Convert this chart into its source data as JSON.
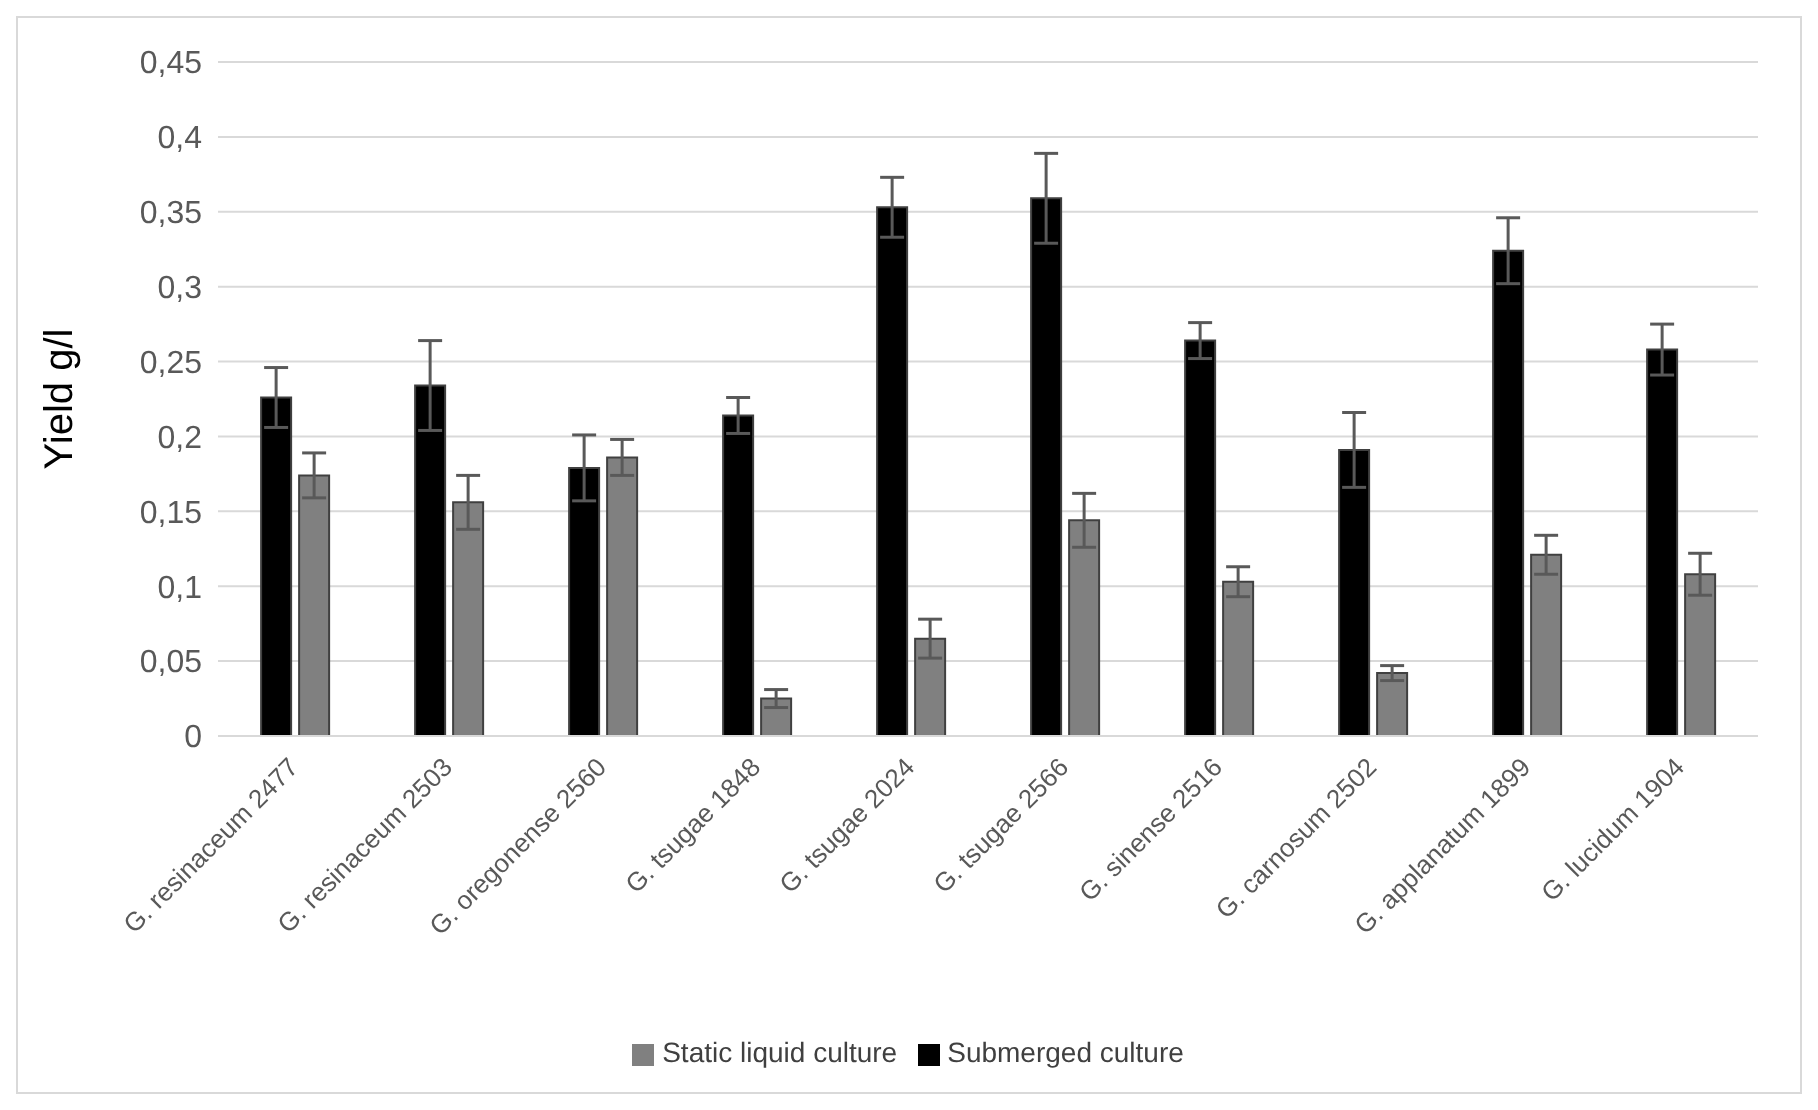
{
  "chart_data": {
    "type": "bar",
    "ylabel": "Yield g/l",
    "categories": [
      "G. resinaceum 2477",
      "G. resinaceum 2503",
      "G. oregonense 2560",
      "G. tsugae 1848",
      "G. tsugae 2024",
      "G. tsugae 2566",
      "G. sinense 2516",
      "G. carnosum 2502",
      "G. applanatum 1899",
      "G. lucidum 1904"
    ],
    "series": [
      {
        "name": "Submerged culture",
        "color": "#000000",
        "values": [
          0.226,
          0.234,
          0.179,
          0.214,
          0.353,
          0.359,
          0.264,
          0.191,
          0.324,
          0.258
        ],
        "errors": [
          0.02,
          0.03,
          0.022,
          0.012,
          0.02,
          0.03,
          0.012,
          0.025,
          0.022,
          0.017
        ]
      },
      {
        "name": "Static liquid culture",
        "color": "#808080",
        "values": [
          0.174,
          0.156,
          0.186,
          0.025,
          0.065,
          0.144,
          0.103,
          0.042,
          0.121,
          0.108
        ],
        "errors": [
          0.015,
          0.018,
          0.012,
          0.006,
          0.013,
          0.018,
          0.01,
          0.005,
          0.013,
          0.014
        ]
      }
    ],
    "ylim": [
      0,
      0.45
    ],
    "yticks": [
      0,
      {
        "value": 0.05,
        "label": "0,05"
      },
      {
        "value": 0.1,
        "label": "0,1"
      },
      {
        "value": 0.15,
        "label": "0,15"
      },
      {
        "value": 0.2,
        "label": "0,2"
      },
      {
        "value": 0.25,
        "label": "0,25"
      },
      {
        "value": 0.3,
        "label": "0,3"
      },
      {
        "value": 0.35,
        "label": "0,35"
      },
      {
        "value": 0.4,
        "label": "0,4"
      },
      {
        "value": 0.45,
        "label": "0,45"
      }
    ],
    "grid": "y",
    "legend": "bottom"
  }
}
